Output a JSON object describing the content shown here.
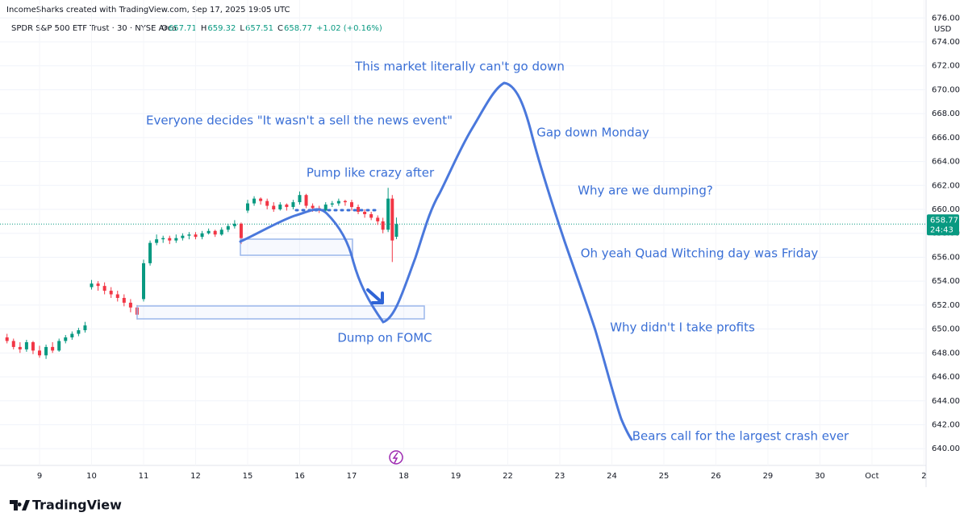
{
  "header": {
    "credit": "IncomeSharks created with TradingView.com, Sep 17, 2025 19:05 UTC",
    "symbol": "SPDR S&P 500 ETF Trust · 30 · NYSE Arca",
    "ohlc": [
      {
        "label": "O",
        "value": 657.71
      },
      {
        "label": "H",
        "value": 659.32
      },
      {
        "label": "L",
        "value": 657.51
      },
      {
        "label": "C",
        "value": 658.77
      }
    ],
    "change": "+1.02 (+0.16%)",
    "currency": "USD",
    "logo": "TradingView"
  },
  "chart_data": {
    "type": "candlestick",
    "up_color": "#089981",
    "down_color": "#f23645",
    "grid": true,
    "ylim": [
      638.6,
      677.5
    ],
    "yticks": [
      {
        "value": 640,
        "label": "640.00"
      },
      {
        "value": 642,
        "label": "642.00"
      },
      {
        "value": 644,
        "label": "644.00"
      },
      {
        "value": 646,
        "label": "646.00"
      },
      {
        "value": 648,
        "label": "648.00"
      },
      {
        "value": 650,
        "label": "650.00"
      },
      {
        "value": 652,
        "label": "652.00"
      },
      {
        "value": 654,
        "label": "654.00"
      },
      {
        "value": 656,
        "label": "656.00"
      },
      {
        "value": 658,
        "label": "658.00"
      },
      {
        "value": 660,
        "label": "660.00"
      },
      {
        "value": 662,
        "label": "662.00"
      },
      {
        "value": 664,
        "label": "664.00"
      },
      {
        "value": 666,
        "label": "666.00"
      },
      {
        "value": 668,
        "label": "668.00"
      },
      {
        "value": 670,
        "label": "670.00"
      },
      {
        "value": 672,
        "label": "672.00"
      },
      {
        "value": 674,
        "label": "674.00"
      },
      {
        "value": 676,
        "label": "676.00"
      }
    ],
    "xlim": [
      -0.76,
      17.04
    ],
    "xticks": [
      {
        "value": 0,
        "label": "9"
      },
      {
        "value": 1,
        "label": "10"
      },
      {
        "value": 2,
        "label": "11"
      },
      {
        "value": 3,
        "label": "12"
      },
      {
        "value": 4,
        "label": "15"
      },
      {
        "value": 5,
        "label": "16"
      },
      {
        "value": 6,
        "label": "17"
      },
      {
        "value": 7,
        "label": "18"
      },
      {
        "value": 8,
        "label": "19"
      },
      {
        "value": 9,
        "label": "22"
      },
      {
        "value": 10,
        "label": "23"
      },
      {
        "value": 11,
        "label": "24"
      },
      {
        "value": 12,
        "label": "25"
      },
      {
        "value": 13,
        "label": "26"
      },
      {
        "value": 14,
        "label": "29"
      },
      {
        "value": 15,
        "label": "30"
      },
      {
        "value": 16,
        "label": "Oct"
      },
      {
        "value": 17,
        "label": "2"
      }
    ],
    "last_price": 658.77,
    "countdown": "24:43",
    "candles": [
      {
        "x": -0.625,
        "o": 649.3,
        "h": 649.6,
        "l": 648.8,
        "c": 649.0
      },
      {
        "x": -0.5,
        "o": 649.0,
        "h": 649.2,
        "l": 648.3,
        "c": 648.5
      },
      {
        "x": -0.375,
        "o": 648.5,
        "h": 648.9,
        "l": 648.0,
        "c": 648.3
      },
      {
        "x": -0.25,
        "o": 648.3,
        "h": 649.1,
        "l": 648.1,
        "c": 648.9
      },
      {
        "x": -0.125,
        "o": 648.9,
        "h": 649.0,
        "l": 647.9,
        "c": 648.2
      },
      {
        "x": 0,
        "o": 648.2,
        "h": 648.6,
        "l": 647.6,
        "c": 647.8
      },
      {
        "x": 0.125,
        "o": 647.8,
        "h": 648.7,
        "l": 647.5,
        "c": 648.5
      },
      {
        "x": 0.25,
        "o": 648.5,
        "h": 648.9,
        "l": 648.0,
        "c": 648.2
      },
      {
        "x": 0.375,
        "o": 648.2,
        "h": 649.2,
        "l": 648.1,
        "c": 649.0
      },
      {
        "x": 0.5,
        "o": 649.0,
        "h": 649.5,
        "l": 648.8,
        "c": 649.3
      },
      {
        "x": 0.625,
        "o": 649.3,
        "h": 649.8,
        "l": 649.1,
        "c": 649.6
      },
      {
        "x": 0.75,
        "o": 649.6,
        "h": 650.1,
        "l": 649.4,
        "c": 649.9
      },
      {
        "x": 0.875,
        "o": 649.9,
        "h": 650.6,
        "l": 649.7,
        "c": 650.3
      },
      {
        "x": 1,
        "o": 653.5,
        "h": 654.1,
        "l": 653.3,
        "c": 653.8
      },
      {
        "x": 1.125,
        "o": 653.8,
        "h": 654.0,
        "l": 653.2,
        "c": 653.6
      },
      {
        "x": 1.25,
        "o": 653.6,
        "h": 653.9,
        "l": 652.9,
        "c": 653.2
      },
      {
        "x": 1.375,
        "o": 653.2,
        "h": 653.5,
        "l": 652.6,
        "c": 652.9
      },
      {
        "x": 1.5,
        "o": 652.9,
        "h": 653.2,
        "l": 652.3,
        "c": 652.6
      },
      {
        "x": 1.625,
        "o": 652.6,
        "h": 652.9,
        "l": 651.9,
        "c": 652.2
      },
      {
        "x": 1.75,
        "o": 652.2,
        "h": 652.5,
        "l": 651.4,
        "c": 651.8
      },
      {
        "x": 1.875,
        "o": 651.8,
        "h": 652.0,
        "l": 650.8,
        "c": 651.2
      },
      {
        "x": 2,
        "o": 652.5,
        "h": 655.8,
        "l": 652.3,
        "c": 655.5
      },
      {
        "x": 2.125,
        "o": 655.5,
        "h": 657.4,
        "l": 655.3,
        "c": 657.2
      },
      {
        "x": 2.25,
        "o": 657.2,
        "h": 657.9,
        "l": 657.0,
        "c": 657.5
      },
      {
        "x": 2.375,
        "o": 657.5,
        "h": 657.8,
        "l": 657.2,
        "c": 657.6
      },
      {
        "x": 2.5,
        "o": 657.6,
        "h": 657.8,
        "l": 657.1,
        "c": 657.4
      },
      {
        "x": 2.625,
        "o": 657.4,
        "h": 657.9,
        "l": 657.2,
        "c": 657.6
      },
      {
        "x": 2.75,
        "o": 657.6,
        "h": 658.0,
        "l": 657.4,
        "c": 657.8
      },
      {
        "x": 2.875,
        "o": 657.8,
        "h": 658.1,
        "l": 657.5,
        "c": 657.9
      },
      {
        "x": 3,
        "o": 657.9,
        "h": 658.1,
        "l": 657.5,
        "c": 657.7
      },
      {
        "x": 3.125,
        "o": 657.7,
        "h": 658.2,
        "l": 657.5,
        "c": 658.0
      },
      {
        "x": 3.25,
        "o": 658.0,
        "h": 658.4,
        "l": 657.9,
        "c": 658.2
      },
      {
        "x": 3.375,
        "o": 658.2,
        "h": 658.3,
        "l": 657.7,
        "c": 657.9
      },
      {
        "x": 3.5,
        "o": 657.9,
        "h": 658.5,
        "l": 657.8,
        "c": 658.3
      },
      {
        "x": 3.625,
        "o": 658.3,
        "h": 658.8,
        "l": 658.1,
        "c": 658.6
      },
      {
        "x": 3.75,
        "o": 658.6,
        "h": 659.1,
        "l": 658.4,
        "c": 658.8
      },
      {
        "x": 3.875,
        "o": 658.8,
        "h": 658.9,
        "l": 657.1,
        "c": 657.6
      },
      {
        "x": 4,
        "o": 659.9,
        "h": 660.8,
        "l": 659.7,
        "c": 660.5
      },
      {
        "x": 4.125,
        "o": 660.5,
        "h": 661.1,
        "l": 660.3,
        "c": 660.9
      },
      {
        "x": 4.25,
        "o": 660.9,
        "h": 661.0,
        "l": 660.4,
        "c": 660.7
      },
      {
        "x": 4.375,
        "o": 660.7,
        "h": 660.9,
        "l": 660.0,
        "c": 660.3
      },
      {
        "x": 4.5,
        "o": 660.3,
        "h": 660.6,
        "l": 659.8,
        "c": 660.0
      },
      {
        "x": 4.625,
        "o": 660.0,
        "h": 660.6,
        "l": 659.9,
        "c": 660.4
      },
      {
        "x": 4.75,
        "o": 660.4,
        "h": 660.5,
        "l": 659.9,
        "c": 660.2
      },
      {
        "x": 4.875,
        "o": 660.2,
        "h": 660.8,
        "l": 660.0,
        "c": 660.6
      },
      {
        "x": 5,
        "o": 660.6,
        "h": 661.5,
        "l": 660.4,
        "c": 661.2
      },
      {
        "x": 5.125,
        "o": 661.2,
        "h": 661.3,
        "l": 660.1,
        "c": 660.3
      },
      {
        "x": 5.25,
        "o": 660.3,
        "h": 660.5,
        "l": 659.8,
        "c": 660.1
      },
      {
        "x": 5.375,
        "o": 660.1,
        "h": 660.3,
        "l": 659.7,
        "c": 659.9
      },
      {
        "x": 5.5,
        "o": 659.9,
        "h": 660.6,
        "l": 659.8,
        "c": 660.4
      },
      {
        "x": 5.625,
        "o": 660.4,
        "h": 660.7,
        "l": 660.2,
        "c": 660.5
      },
      {
        "x": 5.75,
        "o": 660.5,
        "h": 660.9,
        "l": 660.3,
        "c": 660.7
      },
      {
        "x": 5.875,
        "o": 660.7,
        "h": 660.8,
        "l": 660.3,
        "c": 660.6
      },
      {
        "x": 6,
        "o": 660.6,
        "h": 660.8,
        "l": 659.9,
        "c": 660.2
      },
      {
        "x": 6.125,
        "o": 660.2,
        "h": 660.4,
        "l": 659.6,
        "c": 659.8
      },
      {
        "x": 6.25,
        "o": 659.8,
        "h": 660.0,
        "l": 659.3,
        "c": 659.6
      },
      {
        "x": 6.375,
        "o": 659.6,
        "h": 659.8,
        "l": 659.1,
        "c": 659.3
      },
      {
        "x": 6.5,
        "o": 659.3,
        "h": 659.5,
        "l": 658.7,
        "c": 659.0
      },
      {
        "x": 6.6,
        "o": 659.0,
        "h": 659.3,
        "l": 658.0,
        "c": 658.3
      },
      {
        "x": 6.7,
        "o": 658.3,
        "h": 661.8,
        "l": 658.1,
        "c": 660.9
      },
      {
        "x": 6.78,
        "o": 660.9,
        "h": 661.2,
        "l": 655.6,
        "c": 657.4
      },
      {
        "x": 6.86,
        "o": 657.71,
        "h": 659.32,
        "l": 657.51,
        "c": 658.77
      }
    ]
  },
  "annotations": [
    "This market literally can't go down",
    "Everyone decides \"It wasn't a sell the news event\"",
    "Pump like crazy after",
    "Dump on FOMC",
    "Gap down Monday",
    "Why are we dumping?",
    "Oh yeah Quad Witching day was Friday",
    "Why didn't I take profits",
    "Bears call for the largest crash ever"
  ]
}
